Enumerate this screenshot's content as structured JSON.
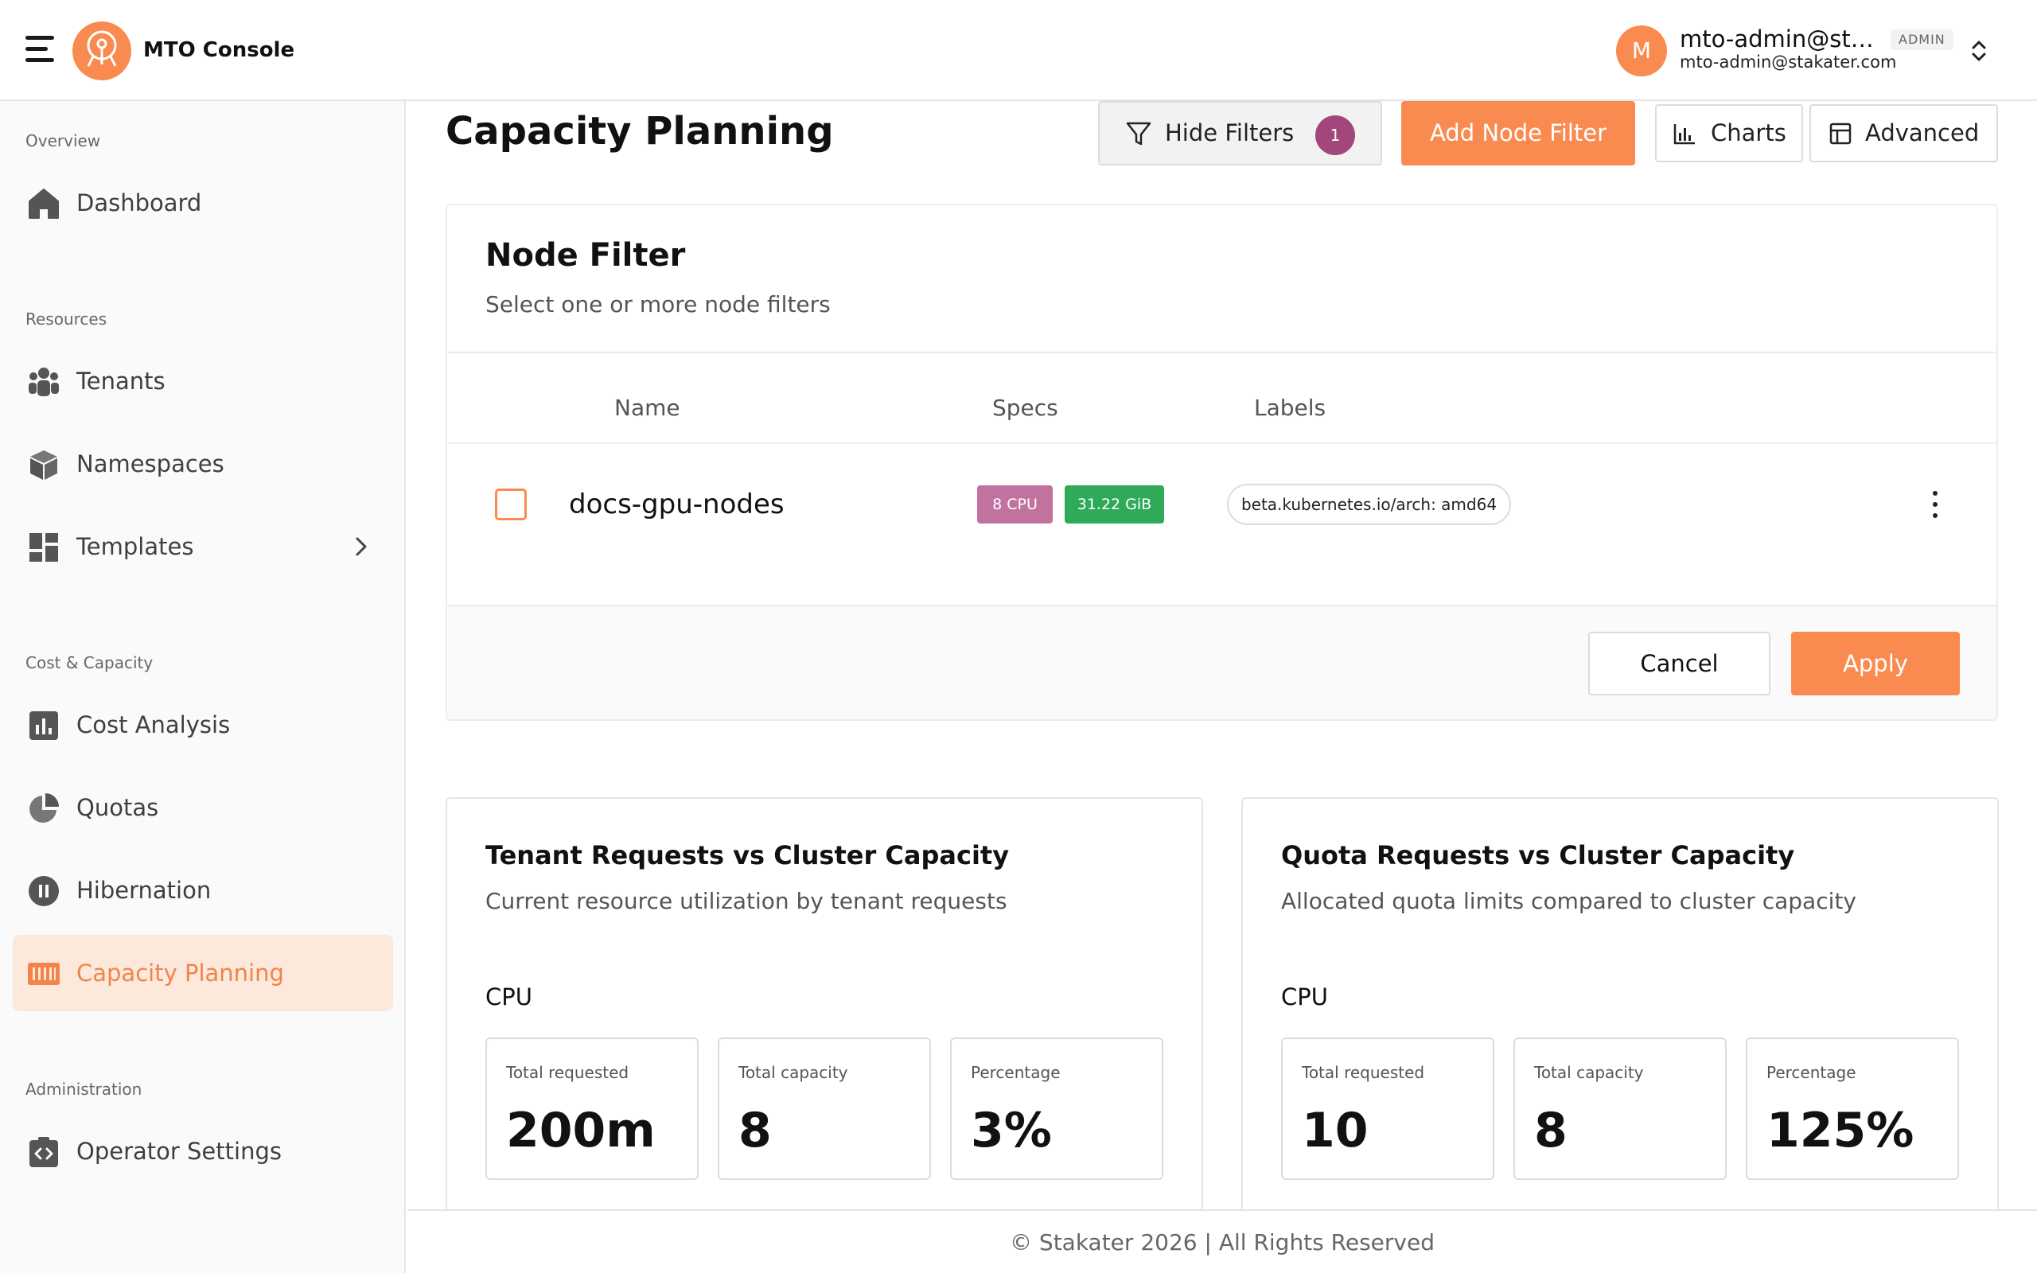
{
  "header": {
    "app_name": "MTO Console",
    "user": {
      "initial": "M",
      "name": "mto-admin@sta...",
      "role": "ADMIN",
      "email": "mto-admin@stakater.com"
    }
  },
  "sidebar": {
    "sections": {
      "overview": "Overview",
      "resources": "Resources",
      "cost_capacity": "Cost & Capacity",
      "administration": "Administration"
    },
    "items": [
      {
        "label": "Dashboard",
        "icon": "home-icon"
      },
      {
        "label": "Tenants",
        "icon": "users-icon"
      },
      {
        "label": "Namespaces",
        "icon": "cube-icon"
      },
      {
        "label": "Templates",
        "icon": "dashboard-grid-icon"
      },
      {
        "label": "Cost Analysis",
        "icon": "bar-chart-icon"
      },
      {
        "label": "Quotas",
        "icon": "pie-chart-icon"
      },
      {
        "label": "Hibernation",
        "icon": "pause-circle-icon"
      },
      {
        "label": "Capacity Planning",
        "icon": "barcode-icon",
        "active": true
      },
      {
        "label": "Operator Settings",
        "icon": "code-clipboard-icon"
      }
    ]
  },
  "page": {
    "title": "Capacity Planning",
    "toolbar": {
      "hide_filters": "Hide Filters",
      "filter_count": "1",
      "add_node_filter": "Add Node Filter",
      "charts": "Charts",
      "advanced": "Advanced"
    }
  },
  "node_filter": {
    "title": "Node Filter",
    "subtitle": "Select one or more node filters",
    "columns": {
      "name": "Name",
      "specs": "Specs",
      "labels": "Labels"
    },
    "rows": [
      {
        "name": "docs-gpu-nodes",
        "cpu": "8 CPU",
        "memory": "31.22 GiB",
        "label": "beta.kubernetes.io/arch: amd64",
        "checked": false
      }
    ],
    "cancel": "Cancel",
    "apply": "Apply"
  },
  "capacity_cards": [
    {
      "title": "Tenant Requests vs Cluster Capacity",
      "subtitle": "Current resource utilization by tenant requests",
      "resource": "CPU",
      "stats": [
        {
          "label": "Total requested",
          "value": "200m"
        },
        {
          "label": "Total capacity",
          "value": "8"
        },
        {
          "label": "Percentage",
          "value": "3%"
        }
      ]
    },
    {
      "title": "Quota Requests vs Cluster Capacity",
      "subtitle": "Allocated quota limits compared to cluster capacity",
      "resource": "CPU",
      "stats": [
        {
          "label": "Total requested",
          "value": "10"
        },
        {
          "label": "Total capacity",
          "value": "8"
        },
        {
          "label": "Percentage",
          "value": "125%"
        }
      ]
    }
  ],
  "footer": {
    "text": "© Stakater 2026 | All Rights Reserved"
  },
  "colors": {
    "accent": "#f98b50",
    "active_bg": "#fde8dc",
    "badge_count": "#a3467b",
    "cpu_badge": "#c2729e",
    "memory_badge": "#2eaa58"
  }
}
